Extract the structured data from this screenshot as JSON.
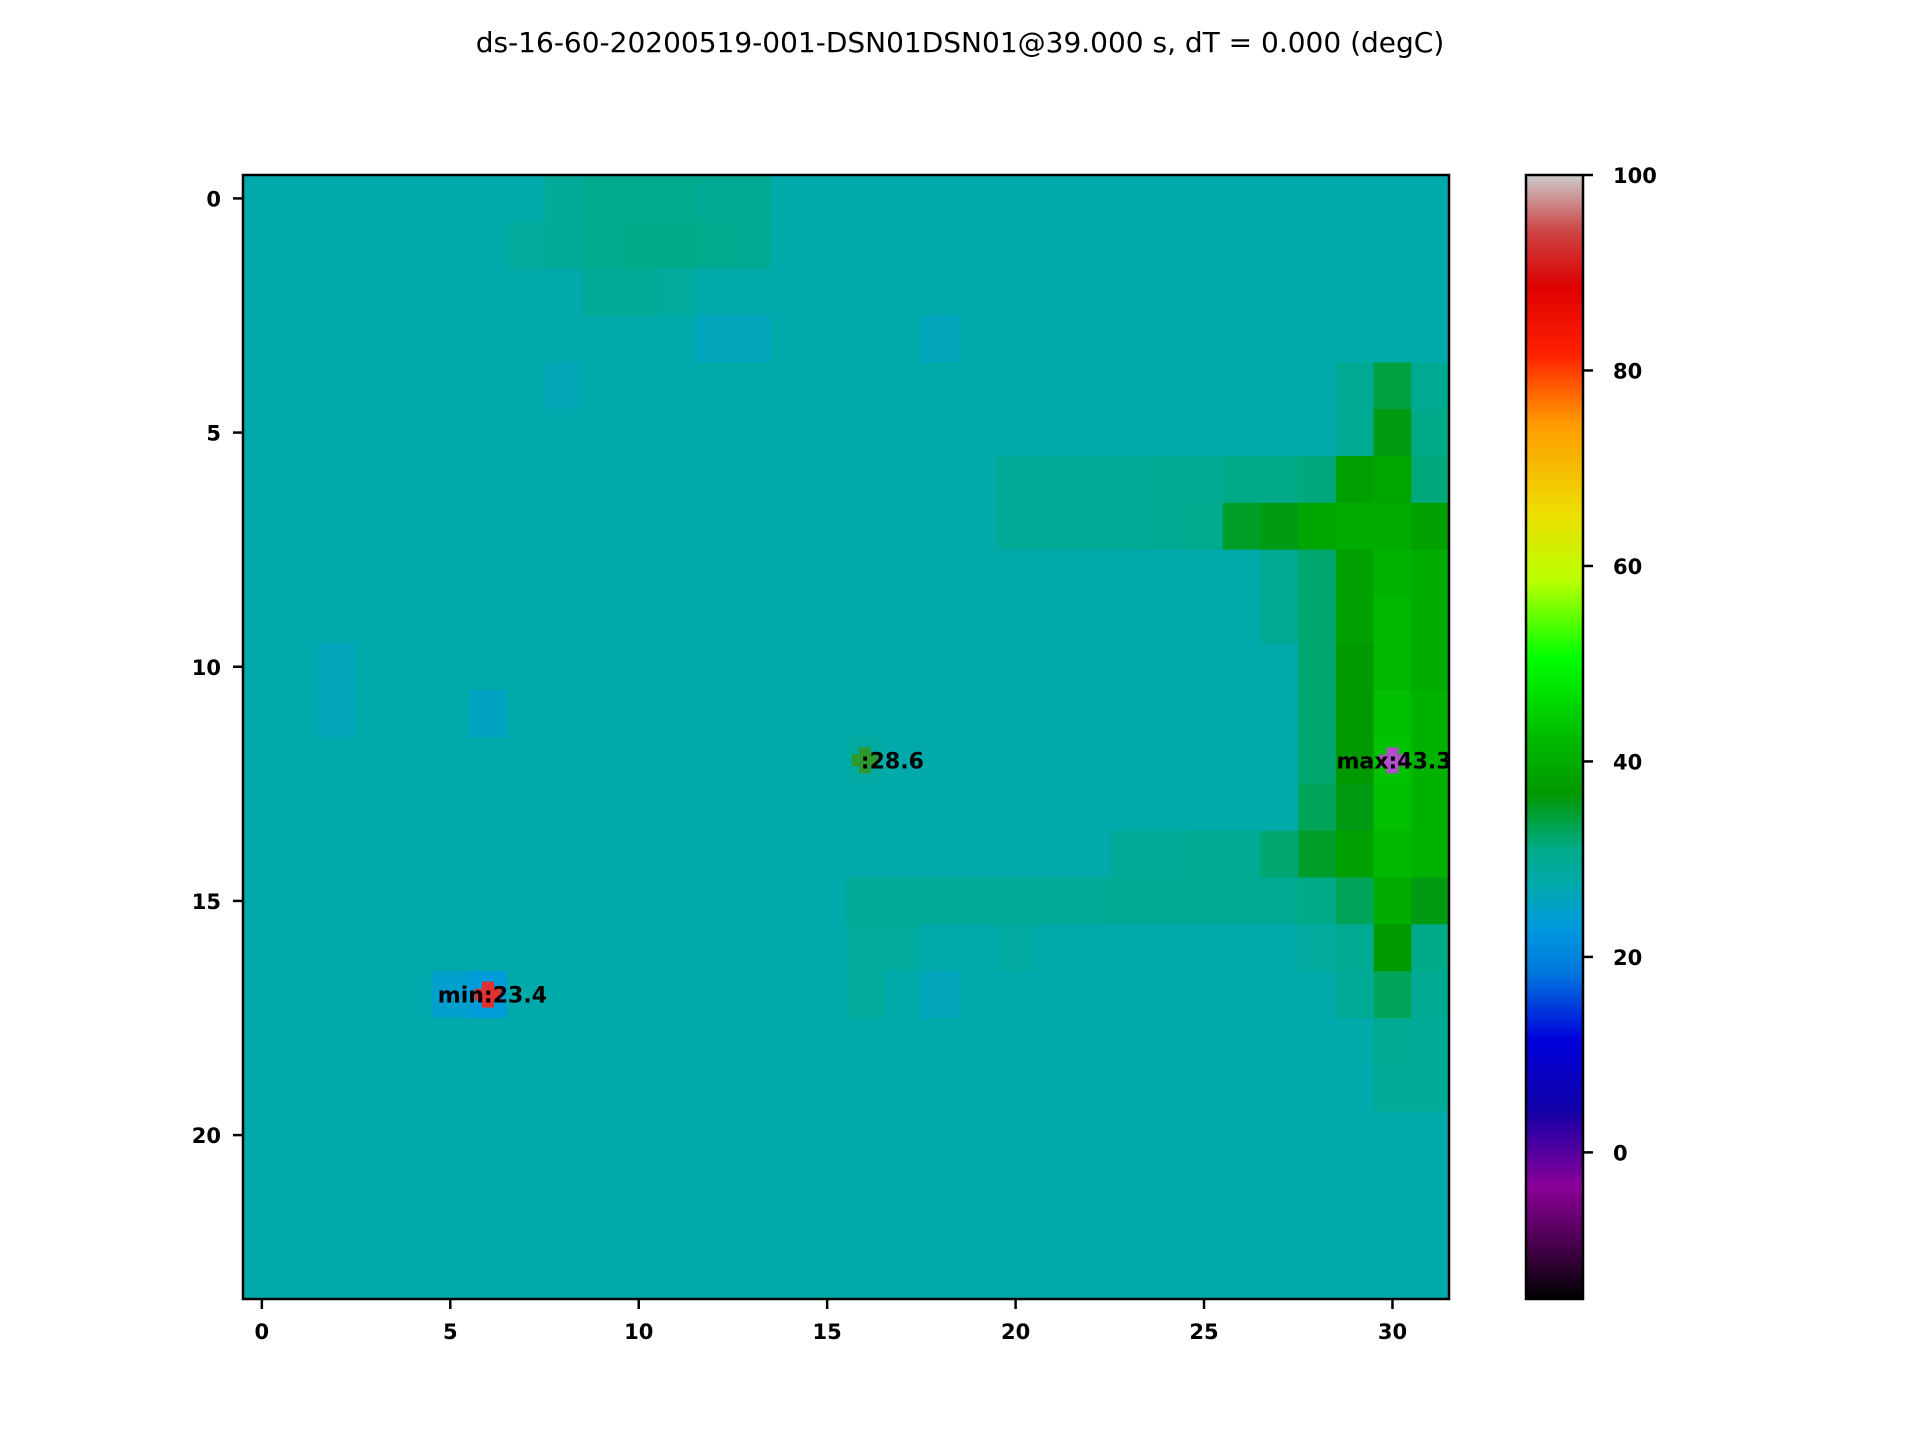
{
  "chart_data": {
    "type": "heatmap",
    "title": "ds-16-60-20200519-001-DSN01DSN01@39.000 s, dT = 0.000 (degC)",
    "xlabel": "",
    "ylabel": "",
    "n_cols": 32,
    "n_rows": 24,
    "xlim": [
      -0.5,
      31.5
    ],
    "ylim": [
      23.5,
      -0.5
    ],
    "x_ticks": [
      0,
      5,
      10,
      15,
      20,
      25,
      30
    ],
    "y_ticks": [
      0,
      5,
      10,
      15,
      20
    ],
    "colormap": "nipy_spectral",
    "clim": [
      -15,
      100
    ],
    "colorbar_ticks": [
      0,
      20,
      40,
      60,
      80,
      100
    ],
    "grid": false,
    "base_value": 27.5,
    "cells": [
      {
        "row": 0,
        "col": 8,
        "value": 29.5
      },
      {
        "row": 0,
        "col": 9,
        "value": 30.5
      },
      {
        "row": 0,
        "col": 10,
        "value": 30.5
      },
      {
        "row": 0,
        "col": 11,
        "value": 30.5
      },
      {
        "row": 0,
        "col": 12,
        "value": 30
      },
      {
        "row": 0,
        "col": 13,
        "value": 30
      },
      {
        "row": 1,
        "col": 7,
        "value": 29
      },
      {
        "row": 1,
        "col": 8,
        "value": 29.5
      },
      {
        "row": 1,
        "col": 9,
        "value": 30.5
      },
      {
        "row": 1,
        "col": 10,
        "value": 31
      },
      {
        "row": 1,
        "col": 11,
        "value": 31
      },
      {
        "row": 1,
        "col": 12,
        "value": 30.5
      },
      {
        "row": 1,
        "col": 13,
        "value": 30
      },
      {
        "row": 2,
        "col": 9,
        "value": 29.5
      },
      {
        "row": 2,
        "col": 10,
        "value": 29.5
      },
      {
        "row": 2,
        "col": 11,
        "value": 29
      },
      {
        "row": 3,
        "col": 12,
        "value": 26
      },
      {
        "row": 3,
        "col": 13,
        "value": 26
      },
      {
        "row": 3,
        "col": 18,
        "value": 26
      },
      {
        "row": 4,
        "col": 8,
        "value": 26.5
      },
      {
        "row": 4,
        "col": 29,
        "value": 30
      },
      {
        "row": 4,
        "col": 30,
        "value": 34
      },
      {
        "row": 4,
        "col": 31,
        "value": 30
      },
      {
        "row": 5,
        "col": 29,
        "value": 30
      },
      {
        "row": 5,
        "col": 30,
        "value": 36
      },
      {
        "row": 5,
        "col": 31,
        "value": 31
      },
      {
        "row": 6,
        "col": 20,
        "value": 29.5
      },
      {
        "row": 6,
        "col": 21,
        "value": 29.5
      },
      {
        "row": 6,
        "col": 22,
        "value": 29.5
      },
      {
        "row": 6,
        "col": 23,
        "value": 29.5
      },
      {
        "row": 6,
        "col": 24,
        "value": 30
      },
      {
        "row": 6,
        "col": 25,
        "value": 30
      },
      {
        "row": 6,
        "col": 26,
        "value": 31
      },
      {
        "row": 6,
        "col": 27,
        "value": 31
      },
      {
        "row": 6,
        "col": 28,
        "value": 31.5
      },
      {
        "row": 6,
        "col": 29,
        "value": 38
      },
      {
        "row": 6,
        "col": 30,
        "value": 39
      },
      {
        "row": 6,
        "col": 31,
        "value": 31.5
      },
      {
        "row": 7,
        "col": 20,
        "value": 29.5
      },
      {
        "row": 7,
        "col": 21,
        "value": 29.5
      },
      {
        "row": 7,
        "col": 22,
        "value": 29.5
      },
      {
        "row": 7,
        "col": 23,
        "value": 29.5
      },
      {
        "row": 7,
        "col": 24,
        "value": 30
      },
      {
        "row": 7,
        "col": 25,
        "value": 30.5
      },
      {
        "row": 7,
        "col": 26,
        "value": 35
      },
      {
        "row": 7,
        "col": 27,
        "value": 36
      },
      {
        "row": 7,
        "col": 28,
        "value": 39
      },
      {
        "row": 7,
        "col": 29,
        "value": 40
      },
      {
        "row": 7,
        "col": 30,
        "value": 40
      },
      {
        "row": 7,
        "col": 31,
        "value": 38
      },
      {
        "row": 8,
        "col": 27,
        "value": 30
      },
      {
        "row": 8,
        "col": 28,
        "value": 32
      },
      {
        "row": 8,
        "col": 29,
        "value": 38
      },
      {
        "row": 8,
        "col": 30,
        "value": 41
      },
      {
        "row": 8,
        "col": 31,
        "value": 40
      },
      {
        "row": 9,
        "col": 27,
        "value": 30
      },
      {
        "row": 9,
        "col": 28,
        "value": 32
      },
      {
        "row": 9,
        "col": 29,
        "value": 38
      },
      {
        "row": 9,
        "col": 30,
        "value": 42
      },
      {
        "row": 9,
        "col": 31,
        "value": 40
      },
      {
        "row": 10,
        "col": 28,
        "value": 32
      },
      {
        "row": 10,
        "col": 29,
        "value": 37
      },
      {
        "row": 10,
        "col": 30,
        "value": 42
      },
      {
        "row": 10,
        "col": 31,
        "value": 40
      },
      {
        "row": 11,
        "col": 28,
        "value": 32
      },
      {
        "row": 11,
        "col": 29,
        "value": 37
      },
      {
        "row": 11,
        "col": 30,
        "value": 43
      },
      {
        "row": 11,
        "col": 31,
        "value": 41
      },
      {
        "row": 12,
        "col": 28,
        "value": 32
      },
      {
        "row": 12,
        "col": 29,
        "value": 37
      },
      {
        "row": 12,
        "col": 30,
        "value": 43.3
      },
      {
        "row": 12,
        "col": 31,
        "value": 41
      },
      {
        "row": 13,
        "col": 28,
        "value": 33
      },
      {
        "row": 13,
        "col": 29,
        "value": 36
      },
      {
        "row": 13,
        "col": 30,
        "value": 43
      },
      {
        "row": 13,
        "col": 31,
        "value": 41
      },
      {
        "row": 14,
        "col": 23,
        "value": 29.5
      },
      {
        "row": 14,
        "col": 24,
        "value": 29.5
      },
      {
        "row": 14,
        "col": 25,
        "value": 30
      },
      {
        "row": 14,
        "col": 26,
        "value": 30
      },
      {
        "row": 14,
        "col": 27,
        "value": 32
      },
      {
        "row": 14,
        "col": 28,
        "value": 35
      },
      {
        "row": 14,
        "col": 29,
        "value": 38
      },
      {
        "row": 14,
        "col": 30,
        "value": 42
      },
      {
        "row": 14,
        "col": 31,
        "value": 41
      },
      {
        "row": 15,
        "col": 16,
        "value": 29.5
      },
      {
        "row": 15,
        "col": 17,
        "value": 29.5
      },
      {
        "row": 15,
        "col": 18,
        "value": 29.5
      },
      {
        "row": 15,
        "col": 19,
        "value": 29.5
      },
      {
        "row": 15,
        "col": 20,
        "value": 29.5
      },
      {
        "row": 15,
        "col": 21,
        "value": 29.5
      },
      {
        "row": 15,
        "col": 22,
        "value": 29.5
      },
      {
        "row": 15,
        "col": 23,
        "value": 30
      },
      {
        "row": 15,
        "col": 24,
        "value": 30
      },
      {
        "row": 15,
        "col": 25,
        "value": 30
      },
      {
        "row": 15,
        "col": 26,
        "value": 30
      },
      {
        "row": 15,
        "col": 27,
        "value": 30
      },
      {
        "row": 15,
        "col": 28,
        "value": 31
      },
      {
        "row": 15,
        "col": 29,
        "value": 33
      },
      {
        "row": 15,
        "col": 30,
        "value": 40
      },
      {
        "row": 15,
        "col": 31,
        "value": 36
      },
      {
        "row": 16,
        "col": 16,
        "value": 29
      },
      {
        "row": 16,
        "col": 17,
        "value": 29
      },
      {
        "row": 16,
        "col": 20,
        "value": 28.5
      },
      {
        "row": 16,
        "col": 28,
        "value": 29
      },
      {
        "row": 16,
        "col": 29,
        "value": 30
      },
      {
        "row": 16,
        "col": 30,
        "value": 37
      },
      {
        "row": 16,
        "col": 31,
        "value": 31
      },
      {
        "row": 17,
        "col": 5,
        "value": 24.5
      },
      {
        "row": 17,
        "col": 6,
        "value": 23.4
      },
      {
        "row": 17,
        "col": 16,
        "value": 29
      },
      {
        "row": 17,
        "col": 18,
        "value": 26
      },
      {
        "row": 17,
        "col": 29,
        "value": 29.5
      },
      {
        "row": 17,
        "col": 30,
        "value": 33
      },
      {
        "row": 17,
        "col": 31,
        "value": 30
      },
      {
        "row": 18,
        "col": 30,
        "value": 30
      },
      {
        "row": 18,
        "col": 31,
        "value": 29.5
      },
      {
        "row": 19,
        "col": 30,
        "value": 29.5
      },
      {
        "row": 19,
        "col": 31,
        "value": 29.5
      },
      {
        "row": 10,
        "col": 2,
        "value": 26
      },
      {
        "row": 11,
        "col": 2,
        "value": 26
      },
      {
        "row": 11,
        "col": 6,
        "value": 25.5
      },
      {
        "row": 12,
        "col": 16,
        "value": 28.6
      }
    ],
    "markers": [
      {
        "label": "min:23.4",
        "x": 6,
        "y": 17,
        "color": "#e03030"
      },
      {
        "label": ":28.6",
        "x": 16,
        "y": 12,
        "color": "#2e9a2e"
      },
      {
        "label": "max:43.3",
        "x": 30,
        "y": 12,
        "color": "#b050c8"
      }
    ]
  }
}
